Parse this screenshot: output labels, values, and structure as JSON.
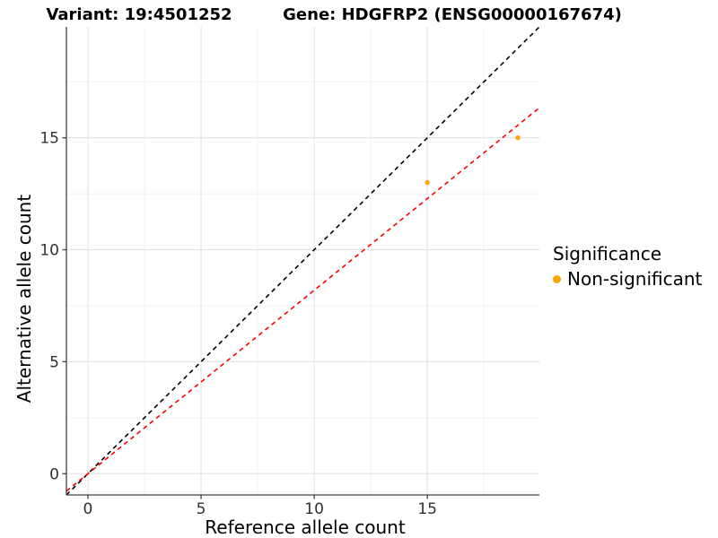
{
  "chart_data": {
    "type": "scatter",
    "title_left": "Variant: 19:4501252",
    "title_right": "Gene: HDGFRP2 (ENSG00000167674)",
    "xlabel": "Reference allele count",
    "ylabel": "Alternative allele count",
    "xlim": [
      -0.95,
      19.95
    ],
    "ylim": [
      -0.95,
      19.95
    ],
    "x_ticks": [
      0,
      5,
      10,
      15
    ],
    "y_ticks": [
      0,
      5,
      10,
      15
    ],
    "x_minor_ticks": [
      2.5,
      7.5,
      12.5,
      17.5
    ],
    "y_minor_ticks": [
      2.5,
      7.5,
      12.5,
      17.5
    ],
    "grid": true,
    "legend_position": "right",
    "series": [
      {
        "name": "Non-significant",
        "color": "#FFA500",
        "points": [
          {
            "x": 15,
            "y": 13
          },
          {
            "x": 19,
            "y": 15
          }
        ]
      }
    ],
    "reference_lines": [
      {
        "name": "identity",
        "slope": 1.0,
        "intercept": 0,
        "color": "#000000",
        "dashed": true
      },
      {
        "name": "fit",
        "slope": 0.819,
        "intercept": 0,
        "color": "#FF0000",
        "dashed": true
      }
    ],
    "legend": {
      "title": "Significance",
      "items": [
        {
          "label": "Non-significant",
          "color": "#FFA500"
        }
      ]
    },
    "colors": {
      "point": "#FFA500",
      "identity_line": "#000000",
      "fit_line": "#FF0000",
      "grid_major": "#E4E4E4",
      "grid_minor": "#F2F2F2",
      "axis_line": "#404040",
      "tick_label": "#303030",
      "background": "#FFFFFF"
    }
  }
}
